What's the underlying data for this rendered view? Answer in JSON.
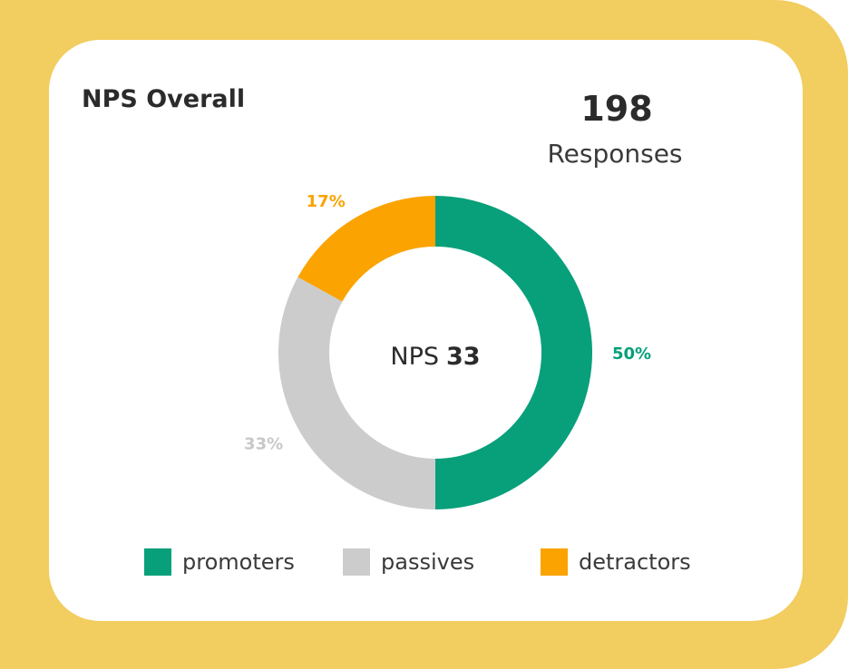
{
  "card": {
    "title": "NPS Overall",
    "response_count": "198",
    "response_label": "Responses"
  },
  "center": {
    "prefix": "NPS",
    "value": "33"
  },
  "colors": {
    "background": "#f2cd5f",
    "promoters": "#08a07a",
    "passives": "#cccccc",
    "detractors": "#fba300"
  },
  "chart_data": {
    "type": "pie",
    "title": "NPS Overall",
    "variant": "donut",
    "categories": [
      "promoters",
      "passives",
      "detractors"
    ],
    "values": [
      50,
      33,
      17
    ],
    "value_labels": [
      "50%",
      "33%",
      "17%"
    ],
    "colors": [
      "#08a07a",
      "#cccccc",
      "#fba300"
    ],
    "center_label": "NPS 33",
    "legend": {
      "position": "bottom",
      "entries": [
        "promoters",
        "passives",
        "detractors"
      ]
    }
  }
}
